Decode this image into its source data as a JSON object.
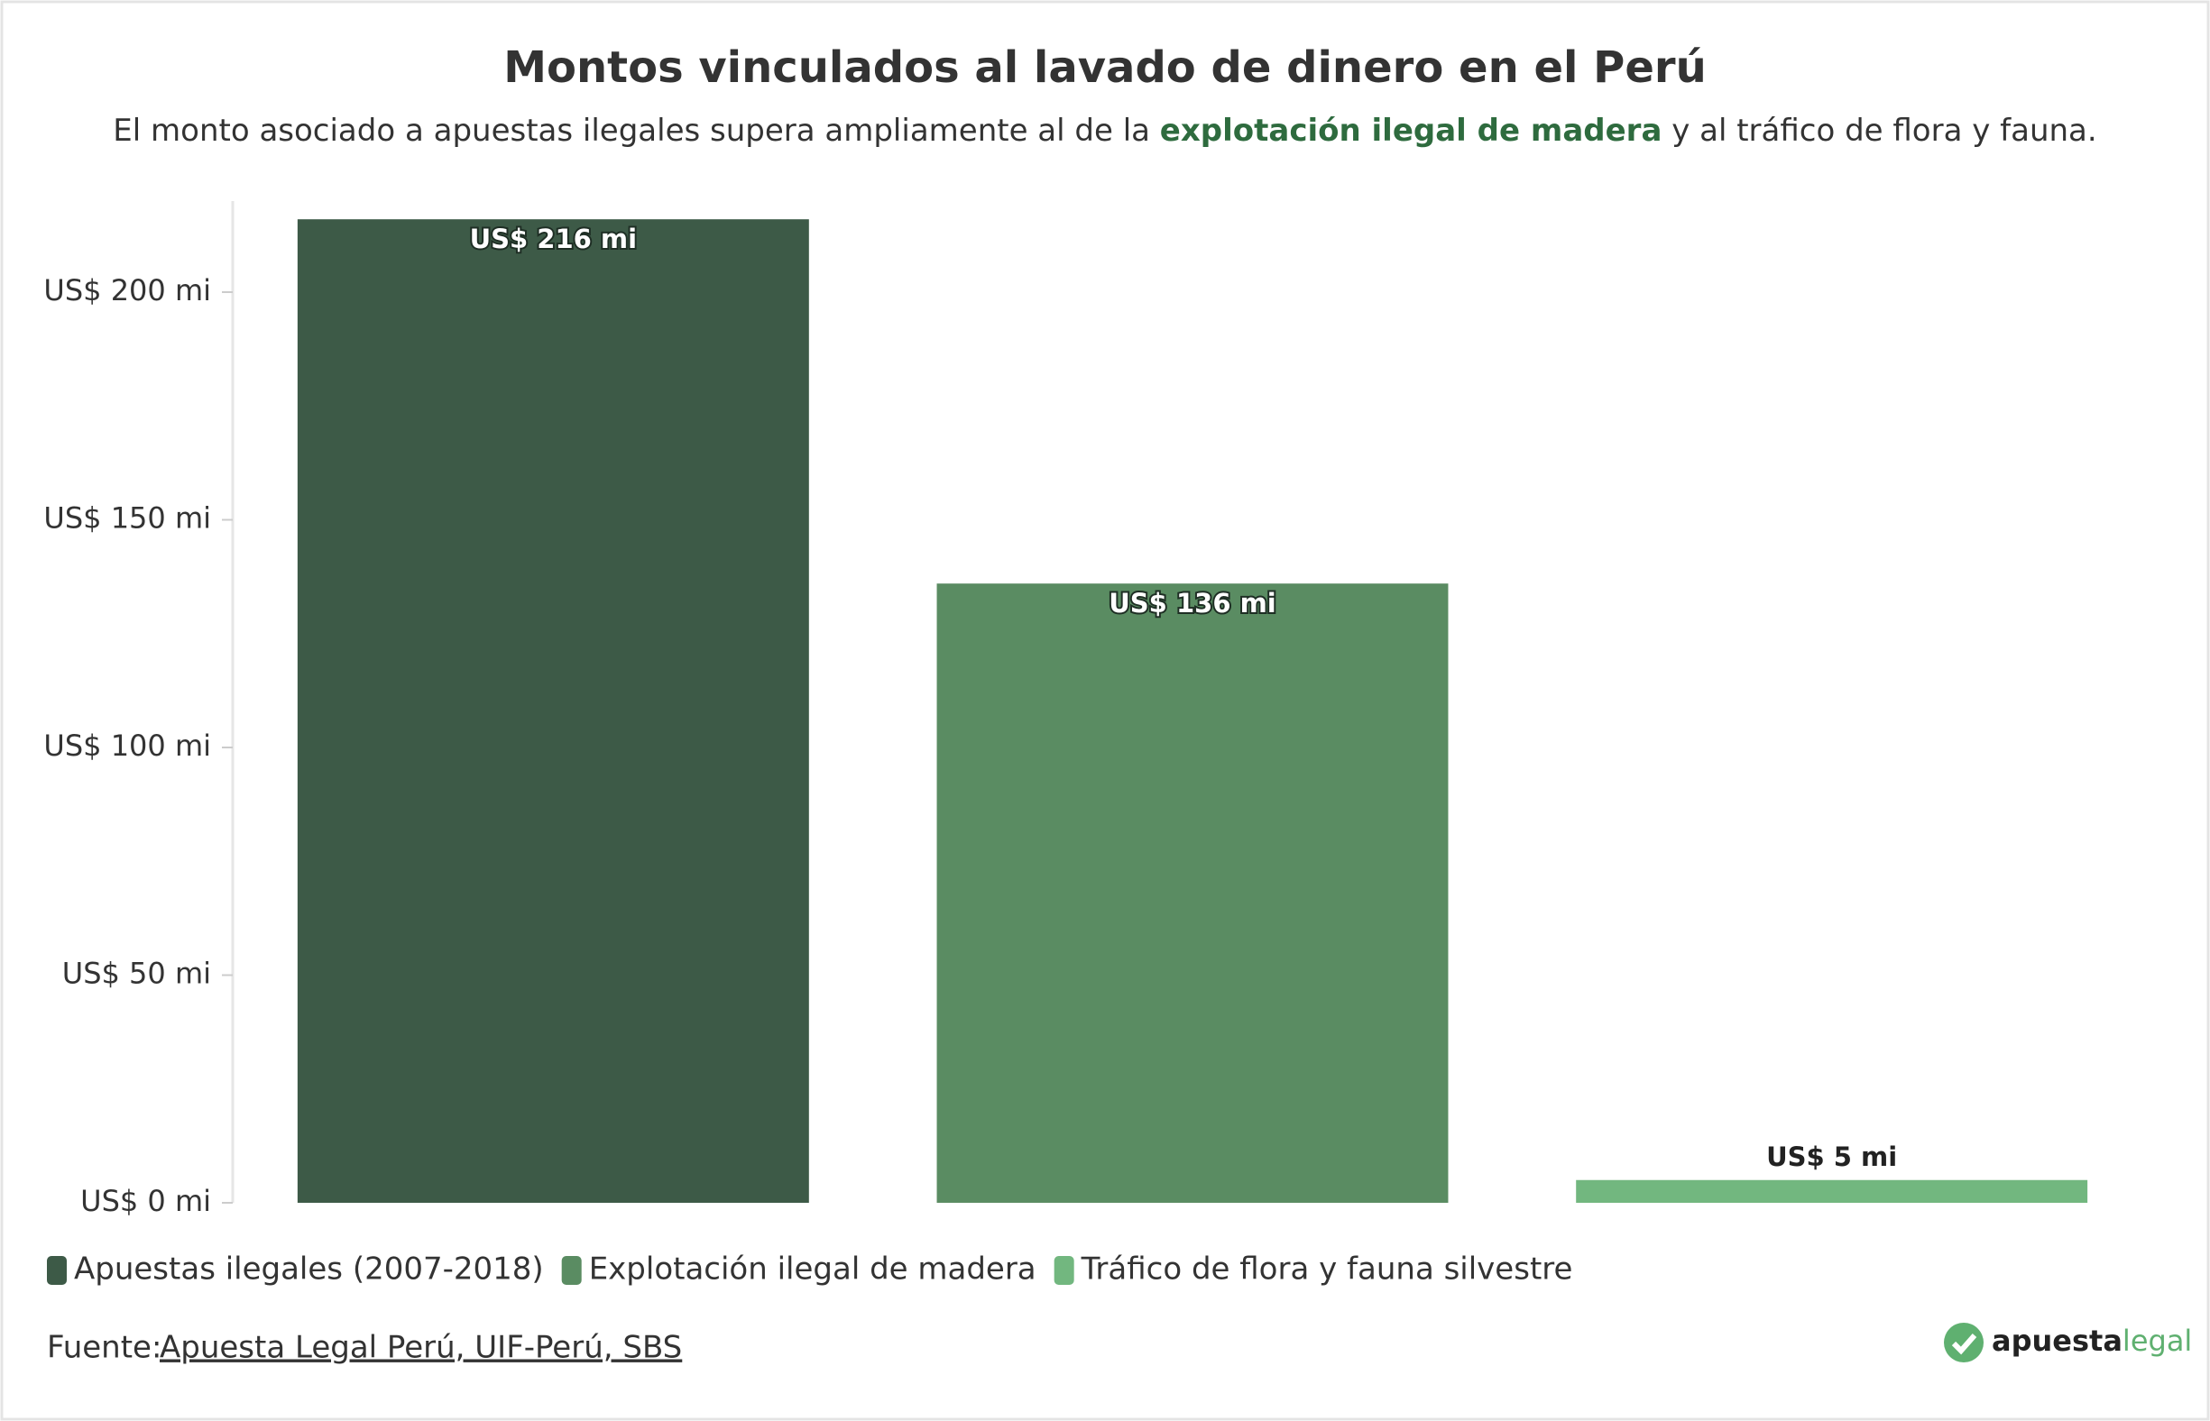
{
  "chart_data": {
    "type": "bar",
    "title": "Montos vinculados al lavado de dinero en el Perú",
    "subtitle": [
      "El monto asociado a apuestas ilegales supera ampliamente al de la ",
      "explotación ilegal de madera",
      " y al tráfico de flora y fauna."
    ],
    "categories": [
      "Apuestas ilegales (2007-2018)",
      "Explotación ilegal de madera",
      "Tráfico de flora y fauna silvestre"
    ],
    "values": [
      216,
      136,
      5
    ],
    "value_labels": [
      "US$ 216 mi",
      "US$ 136 mi",
      "US$ 5 mi"
    ],
    "colors": [
      "#3d5a47",
      "#5a8c62",
      "#72b77f"
    ],
    "ylim": [
      0,
      220
    ],
    "yticks": [
      {
        "value": 0,
        "label": "US$ 0 mi"
      },
      {
        "value": 50,
        "label": "US$ 50 mi"
      },
      {
        "value": 100,
        "label": "US$ 100 mi"
      },
      {
        "value": 150,
        "label": "US$ 150 mi"
      },
      {
        "value": 200,
        "label": "US$ 200 mi"
      }
    ],
    "legend": "bottom-left",
    "source_label": "Fuente:",
    "source": "Apuesta Legal Perú, UIF-Perú, SBS",
    "logo": [
      "apuesta",
      "legal"
    ]
  }
}
